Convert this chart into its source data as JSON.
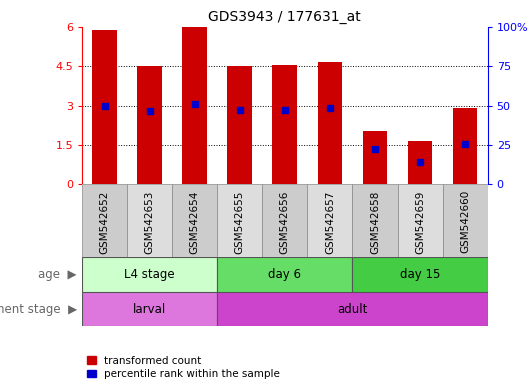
{
  "title": "GDS3943 / 177631_at",
  "samples": [
    "GSM542652",
    "GSM542653",
    "GSM542654",
    "GSM542655",
    "GSM542656",
    "GSM542657",
    "GSM542658",
    "GSM542659",
    "GSM542660"
  ],
  "bar_heights": [
    5.9,
    4.5,
    5.98,
    4.5,
    4.55,
    4.65,
    2.05,
    1.65,
    2.9
  ],
  "blue_positions": [
    3.0,
    2.8,
    3.05,
    2.85,
    2.85,
    2.9,
    1.35,
    0.85,
    1.55
  ],
  "bar_color": "#cc0000",
  "blue_color": "#0000cc",
  "ylim_left": [
    0,
    6
  ],
  "yticks_left": [
    0,
    1.5,
    3.0,
    4.5,
    6
  ],
  "ytick_labels_left": [
    "0",
    "1.5",
    "3",
    "4.5",
    "6"
  ],
  "ytick_labels_right": [
    "0",
    "25",
    "50",
    "75",
    "100%"
  ],
  "hlines": [
    1.5,
    3.0,
    4.5
  ],
  "age_groups": [
    {
      "label": "L4 stage",
      "start": 0,
      "end": 3,
      "color": "#ccffcc"
    },
    {
      "label": "day 6",
      "start": 3,
      "end": 6,
      "color": "#66dd66"
    },
    {
      "label": "day 15",
      "start": 6,
      "end": 9,
      "color": "#44cc44"
    }
  ],
  "dev_groups": [
    {
      "label": "larval",
      "start": 0,
      "end": 3,
      "color": "#dd77dd"
    },
    {
      "label": "adult",
      "start": 3,
      "end": 9,
      "color": "#cc44cc"
    }
  ],
  "age_label": "age",
  "dev_label": "development stage",
  "legend_red": "transformed count",
  "legend_blue": "percentile rank within the sample",
  "bar_width": 0.55,
  "cell_colors": [
    "#cccccc",
    "#dddddd",
    "#cccccc",
    "#dddddd",
    "#cccccc",
    "#dddddd",
    "#cccccc",
    "#dddddd",
    "#cccccc"
  ]
}
